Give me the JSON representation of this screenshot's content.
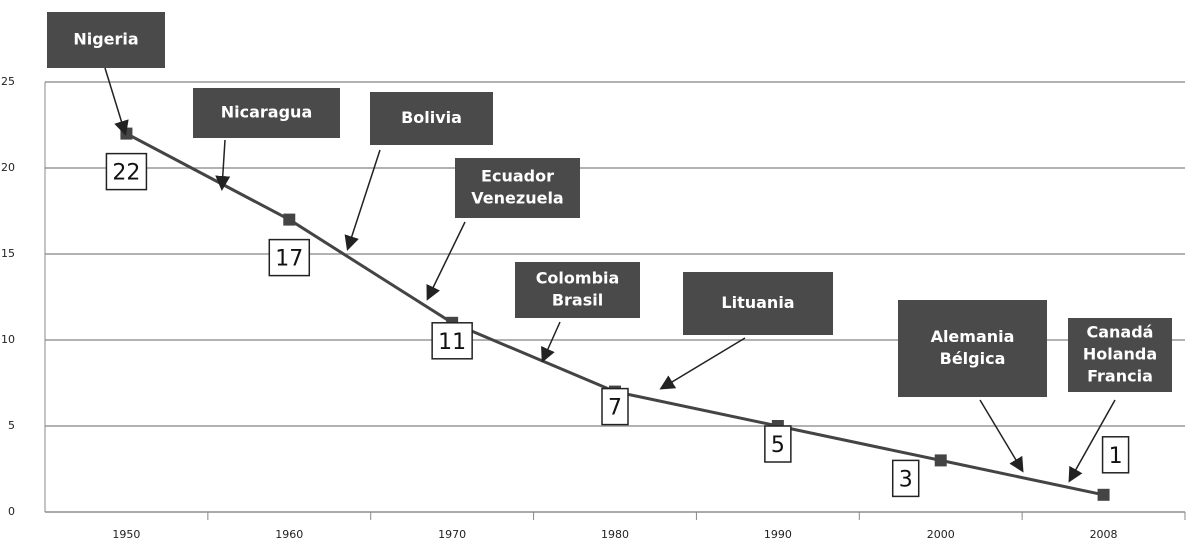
{
  "chart_data": {
    "type": "line",
    "categories": [
      "1950",
      "1960",
      "1970",
      "1980",
      "1990",
      "2000",
      "2008"
    ],
    "values": [
      22,
      17,
      11,
      7,
      5,
      3,
      1
    ],
    "color": "#444444",
    "ylim": [
      0,
      25
    ],
    "yticks": [
      0,
      5,
      10,
      15,
      20,
      25
    ],
    "grid": true,
    "annotations": [
      [
        "Nigeria"
      ],
      [
        "Nicaragua"
      ],
      [
        "Bolivia"
      ],
      [
        "Ecuador",
        "Venezuela"
      ],
      [
        "Colombia",
        "Brasil"
      ],
      [
        "Lituania"
      ],
      [
        "Alemania",
        "Bélgica"
      ],
      [
        "Canadá",
        "Holanda",
        "Francia"
      ]
    ]
  }
}
